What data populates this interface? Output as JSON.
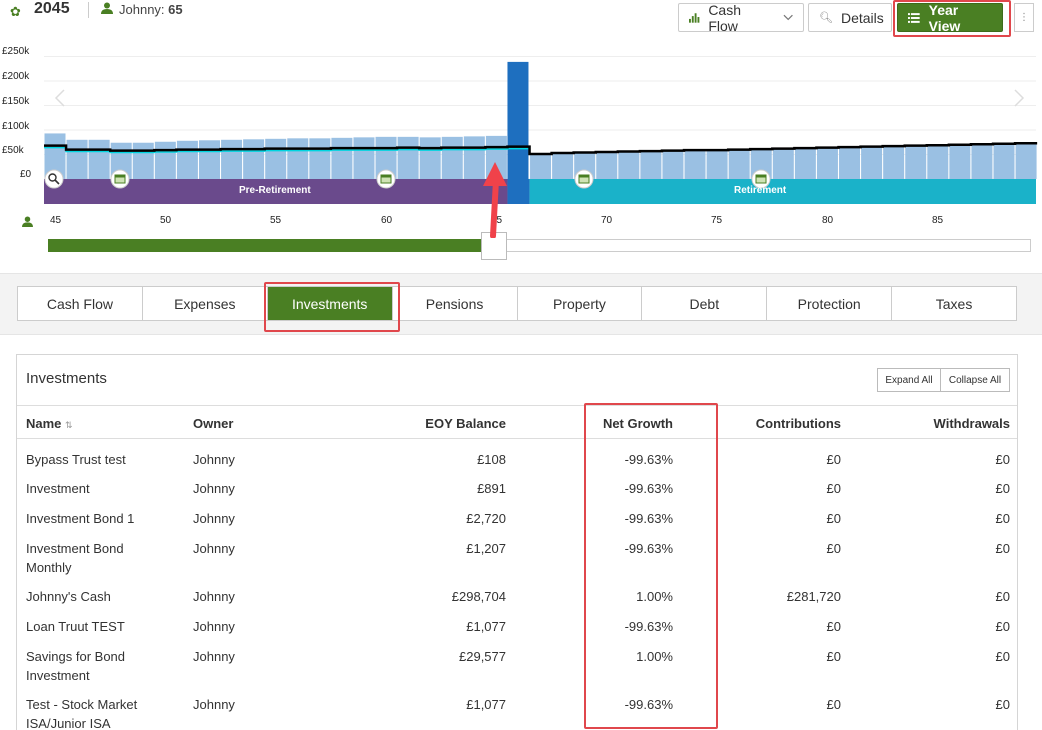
{
  "header": {
    "year": "2045",
    "client_name": "Johnny:",
    "client_age": "65",
    "buttons": {
      "cash_flow": "Cash Flow",
      "details": "Details",
      "year_view": "Year View",
      "more": "⋮"
    }
  },
  "chart": {
    "y_ticks": [
      "£250k",
      "£200k",
      "£150k",
      "£100k",
      "£50k",
      "£0"
    ],
    "x_ticks": [
      "45",
      "50",
      "55",
      "60",
      "65",
      "70",
      "75",
      "80",
      "85"
    ],
    "phases": [
      "Pre-Retirement",
      "Retirement"
    ],
    "colors": {
      "bars": "#9ac0e3",
      "highlight_bar": "#1e6fbf",
      "pre_retirement": "#6a4a8c",
      "retirement": "#1ab2c9",
      "line": "#000000",
      "cyan_line": "#00d5e0",
      "accent": "#4a7f23"
    },
    "selected_age": 65
  },
  "chart_data": {
    "type": "bar",
    "x": [
      44,
      45,
      46,
      47,
      48,
      49,
      50,
      51,
      52,
      53,
      54,
      55,
      56,
      57,
      58,
      59,
      60,
      61,
      62,
      63,
      64,
      65,
      66,
      67,
      68,
      69,
      70,
      71,
      72,
      73,
      74,
      75,
      76,
      77,
      78,
      79,
      80,
      81,
      82,
      83,
      84,
      85,
      86,
      87,
      88
    ],
    "values": [
      93,
      80,
      80,
      74,
      74,
      76,
      78,
      79,
      80,
      81,
      82,
      83,
      83,
      84,
      85,
      86,
      86,
      85,
      86,
      87,
      88,
      239,
      50,
      53,
      55,
      57,
      58,
      59,
      60,
      61,
      61,
      62,
      63,
      64,
      64,
      65,
      65,
      66,
      67,
      67,
      68,
      69,
      70,
      70,
      71
    ],
    "line_values": [
      68,
      60,
      60,
      58,
      58,
      59,
      60,
      60,
      61,
      61,
      62,
      62,
      62,
      63,
      63,
      63,
      64,
      63,
      64,
      64,
      65,
      66,
      51,
      53,
      54,
      55,
      56,
      57,
      58,
      59,
      59,
      60,
      61,
      62,
      63,
      64,
      65,
      66,
      67,
      68,
      69,
      70,
      71,
      72,
      73
    ],
    "ylim": [
      0,
      250000
    ],
    "xlabel": "",
    "ylabel": ""
  },
  "slider": {
    "position": 0.44
  },
  "tabs": [
    "Cash Flow",
    "Expenses",
    "Investments",
    "Pensions",
    "Property",
    "Debt",
    "Protection",
    "Taxes"
  ],
  "active_tab": "Investments",
  "investments": {
    "title": "Investments",
    "expand_all": "Expand All",
    "collapse_all": "Collapse All",
    "columns": [
      "Name",
      "Owner",
      "EOY Balance",
      "Net Growth",
      "Contributions",
      "Withdrawals"
    ],
    "rows": [
      {
        "name": [
          "Bypass Trust test"
        ],
        "owner": "Johnny",
        "balance": "£108",
        "growth": "-99.63%",
        "contrib": "£0",
        "withdraw": "£0"
      },
      {
        "name": [
          "Investment"
        ],
        "owner": "Johnny",
        "balance": "£891",
        "growth": "-99.63%",
        "contrib": "£0",
        "withdraw": "£0"
      },
      {
        "name": [
          "Investment Bond 1"
        ],
        "owner": "Johnny",
        "balance": "£2,720",
        "growth": "-99.63%",
        "contrib": "£0",
        "withdraw": "£0"
      },
      {
        "name": [
          "Investment Bond",
          "Monthly"
        ],
        "owner": "Johnny",
        "balance": "£1,207",
        "growth": "-99.63%",
        "contrib": "£0",
        "withdraw": "£0"
      },
      {
        "name": [
          "Johnny's Cash"
        ],
        "owner": "Johnny",
        "balance": "£298,704",
        "growth": "1.00%",
        "contrib": "£281,720",
        "withdraw": "£0"
      },
      {
        "name": [
          "Loan Truut TEST"
        ],
        "owner": "Johnny",
        "balance": "£1,077",
        "growth": "-99.63%",
        "contrib": "£0",
        "withdraw": "£0"
      },
      {
        "name": [
          "Savings for Bond",
          "Investment"
        ],
        "owner": "Johnny",
        "balance": "£29,577",
        "growth": "1.00%",
        "contrib": "£0",
        "withdraw": "£0"
      },
      {
        "name": [
          "Test - Stock Market",
          "ISA/Junior ISA"
        ],
        "owner": "Johnny",
        "balance": "£1,077",
        "growth": "-99.63%",
        "contrib": "£0",
        "withdraw": "£0"
      }
    ]
  }
}
